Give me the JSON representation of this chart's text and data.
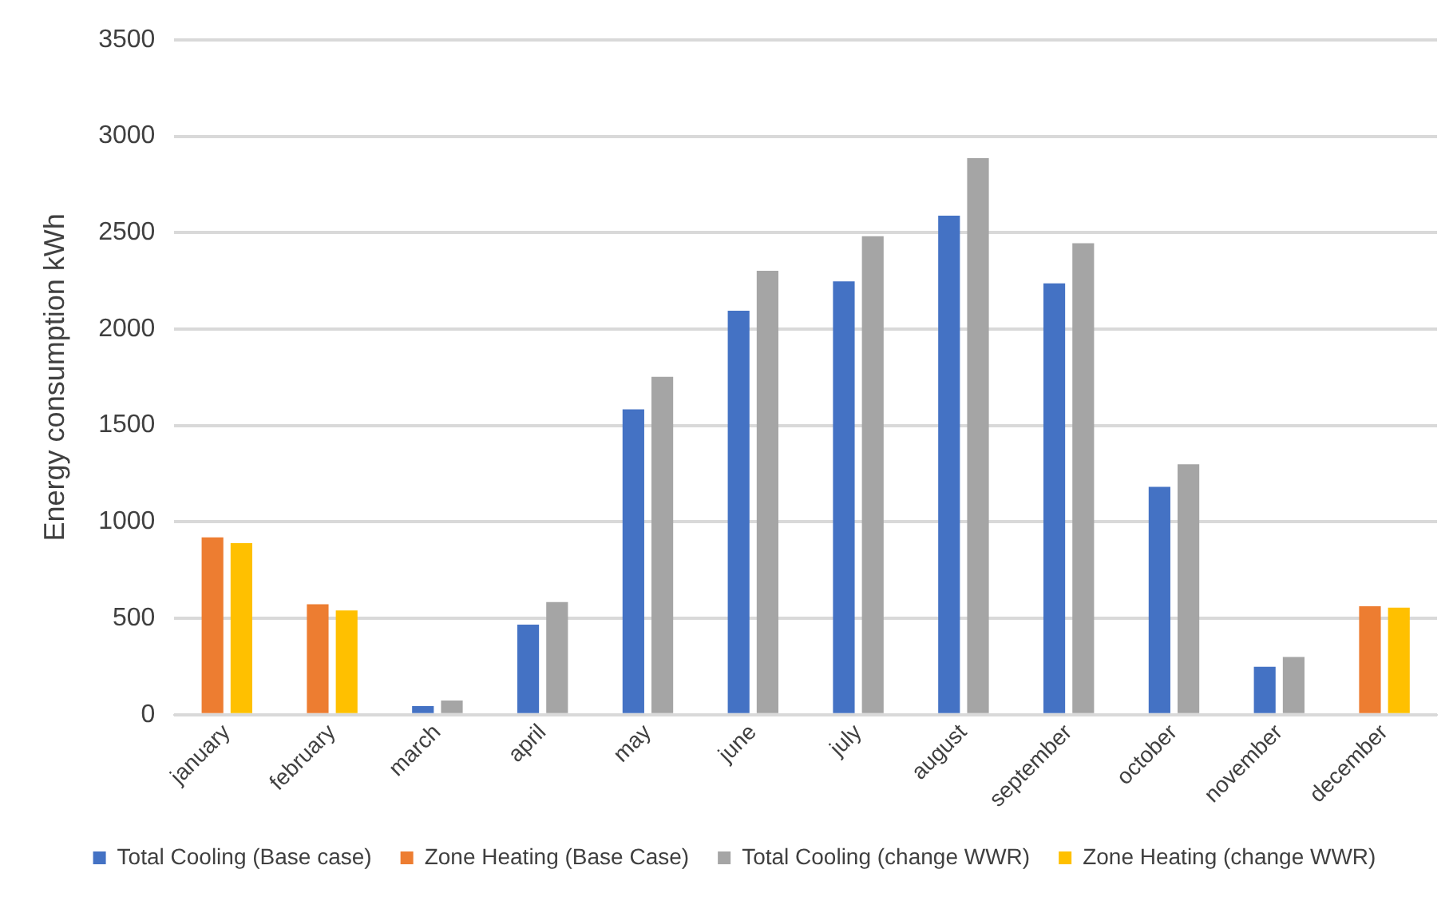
{
  "chart_data": {
    "type": "bar",
    "ylabel": "Energy consumption kWh",
    "categories": [
      "january",
      "february",
      "march",
      "april",
      "may",
      "june",
      "july",
      "august",
      "september",
      "october",
      "november",
      "december"
    ],
    "series": [
      {
        "name": "Total Cooling (Base case)",
        "color": "#4472c4",
        "values": [
          null,
          null,
          44,
          467,
          1584,
          2095,
          2248,
          2588,
          2237,
          1182,
          248,
          null
        ]
      },
      {
        "name": "Zone Heating (Base Case)",
        "color": "#ed7d31",
        "values": [
          920,
          573,
          null,
          null,
          null,
          null,
          null,
          null,
          null,
          null,
          null,
          562
        ]
      },
      {
        "name": "Total Cooling (change WWR)",
        "color": "#a5a5a5",
        "values": [
          null,
          null,
          73,
          584,
          1752,
          2303,
          2482,
          2887,
          2445,
          1299,
          299,
          null
        ]
      },
      {
        "name": "Zone Heating (change WWR)",
        "color": "#ffc000",
        "values": [
          890,
          540,
          null,
          null,
          null,
          null,
          null,
          null,
          null,
          null,
          null,
          555
        ]
      }
    ],
    "ylim": [
      0,
      3500
    ],
    "yticks": [
      0,
      500,
      1000,
      1500,
      2000,
      2500,
      3000,
      3500
    ],
    "grid": "y",
    "legend": "bottom"
  }
}
